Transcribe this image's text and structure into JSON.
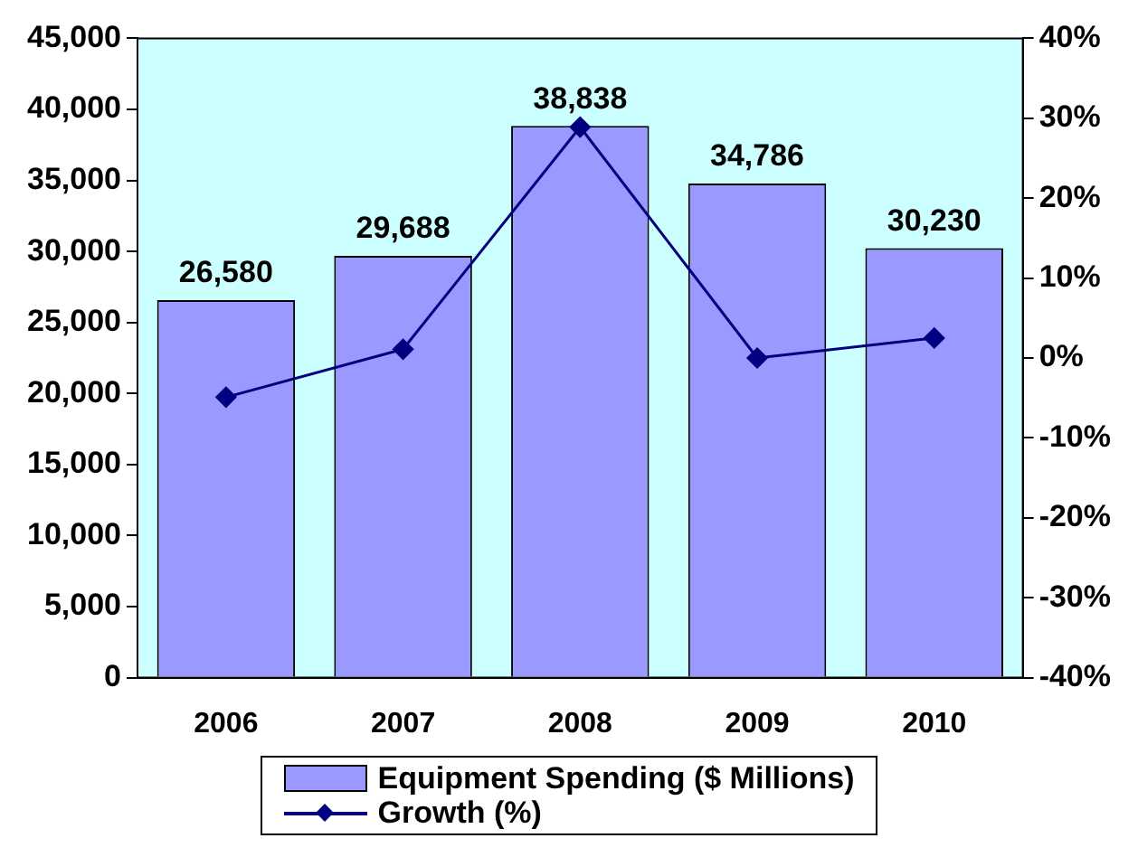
{
  "chart_data": {
    "type": "bar",
    "categories": [
      "2006",
      "2007",
      "2008",
      "2009",
      "2010"
    ],
    "series": [
      {
        "name": "Equipment Spending ($ Millions)",
        "color": "#9999ff",
        "values": [
          26580,
          29688,
          38838,
          34786,
          30230
        ],
        "value_labels": [
          "26,580",
          "29,688",
          "38,838",
          "34,786",
          "30,230"
        ]
      },
      {
        "name": "Growth (%)",
        "type": "line",
        "axis": "y2",
        "color": "#000080",
        "values": [
          -4.9,
          1.1,
          28.9,
          0.0,
          2.5
        ]
      }
    ],
    "ylim": [
      0,
      45000
    ],
    "yticks": [
      {
        "value": 0,
        "label": "0"
      },
      {
        "value": 5000,
        "label": "5,000"
      },
      {
        "value": 10000,
        "label": "10,000"
      },
      {
        "value": 15000,
        "label": "15,000"
      },
      {
        "value": 20000,
        "label": "20,000"
      },
      {
        "value": 25000,
        "label": "25,000"
      },
      {
        "value": 30000,
        "label": "30,000"
      },
      {
        "value": 35000,
        "label": "35,000"
      },
      {
        "value": 40000,
        "label": "40,000"
      },
      {
        "value": 45000,
        "label": "45,000"
      }
    ],
    "y2lim": [
      -40,
      40
    ],
    "y2ticks": [
      {
        "value": -40,
        "label": "-40%"
      },
      {
        "value": -30,
        "label": "-30%"
      },
      {
        "value": -20,
        "label": "-20%"
      },
      {
        "value": -10,
        "label": "-10%"
      },
      {
        "value": 0,
        "label": "0%"
      },
      {
        "value": 10,
        "label": "10%"
      },
      {
        "value": 20,
        "label": "20%"
      },
      {
        "value": 30,
        "label": "30%"
      },
      {
        "value": 40,
        "label": "40%"
      }
    ],
    "bands": [
      {
        "axis": "y",
        "from": 0,
        "to": 45000,
        "color": "#ccffff"
      }
    ],
    "legend": "bottom",
    "marker": "diamond",
    "grid": false
  }
}
